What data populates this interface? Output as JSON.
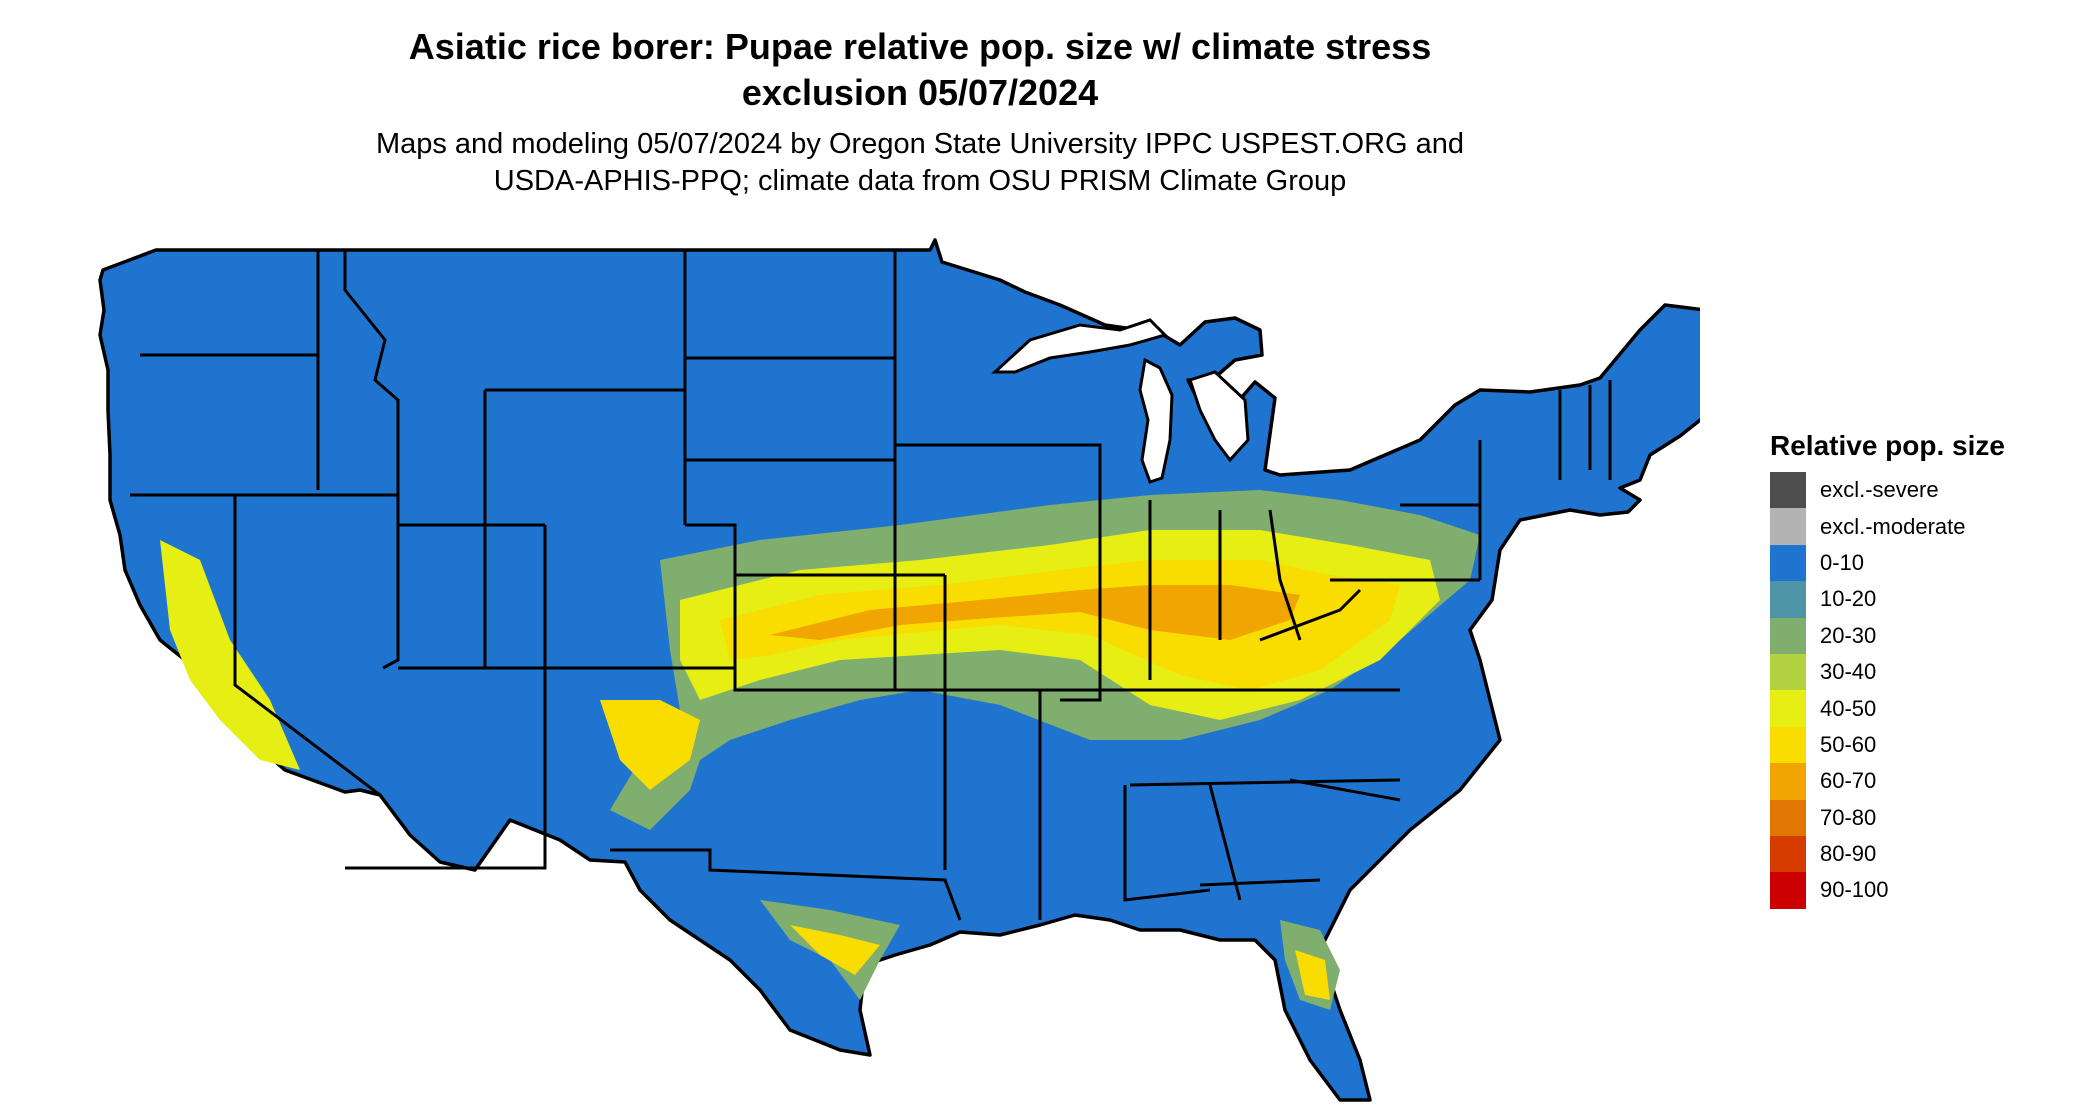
{
  "title_line1": "Asiatic rice borer: Pupae relative pop. size w/ climate stress",
  "title_line2": "exclusion 05/07/2024",
  "subtitle_line1": "Maps and modeling 05/07/2024 by Oregon State University IPPC USPEST.ORG and",
  "subtitle_line2": "USDA-APHIS-PPQ; climate data from OSU PRISM Climate Group",
  "legend": {
    "title": "Relative pop. size",
    "items": [
      {
        "label": "excl.-severe",
        "color": "#4d4d4d"
      },
      {
        "label": "excl.-moderate",
        "color": "#b3b3b3"
      },
      {
        "label": "0-10",
        "color": "#1f74d0"
      },
      {
        "label": "10-20",
        "color": "#4f93a7"
      },
      {
        "label": "20-30",
        "color": "#7fae6f"
      },
      {
        "label": "30-40",
        "color": "#b2d13e"
      },
      {
        "label": "40-50",
        "color": "#e6ee14"
      },
      {
        "label": "50-60",
        "color": "#f9dc00"
      },
      {
        "label": "60-70",
        "color": "#f0a500"
      },
      {
        "label": "70-80",
        "color": "#e17600"
      },
      {
        "label": "80-90",
        "color": "#d63b00"
      },
      {
        "label": "90-100",
        "color": "#cc0000"
      }
    ]
  },
  "map": {
    "base_color": "#1f74d0",
    "border_color": "#000000"
  }
}
